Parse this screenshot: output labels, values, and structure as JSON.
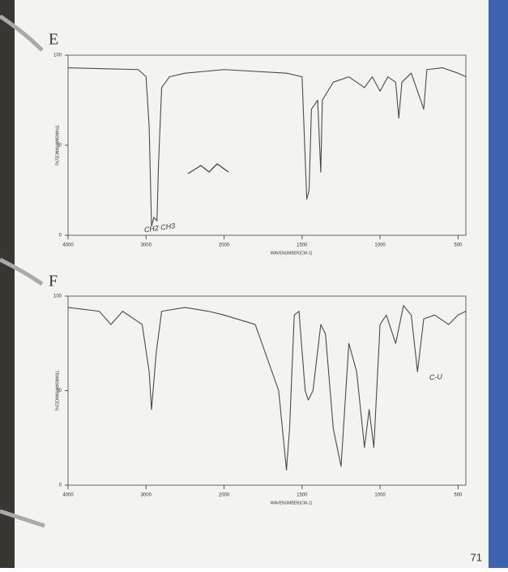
{
  "page_number": "71",
  "chart_data": [
    {
      "type": "line",
      "title": "E",
      "x_label": "WAVENUMBER(CM-1)",
      "y_label": "TRANSMITTANCE(%)",
      "annotations": [
        "CH2 CH3"
      ],
      "color": "#4a4a4a",
      "grid": false,
      "x_scale_break": 2000,
      "xlim": [
        4000,
        450
      ],
      "xticks": [
        4000,
        3000,
        2000,
        1500,
        1000,
        500
      ],
      "ylim": [
        0,
        100
      ],
      "yticks": [
        0,
        50,
        100
      ],
      "x": [
        4000,
        3100,
        3000,
        2960,
        2930,
        2900,
        2860,
        2840,
        2800,
        2700,
        2500,
        2000,
        1600,
        1500,
        1470,
        1455,
        1440,
        1400,
        1380,
        1370,
        1300,
        1200,
        1100,
        1050,
        1000,
        950,
        900,
        880,
        860,
        800,
        720,
        700,
        600,
        500,
        450
      ],
      "values": [
        93,
        92,
        88,
        60,
        5,
        10,
        8,
        40,
        82,
        88,
        90,
        92,
        90,
        88,
        20,
        25,
        70,
        75,
        35,
        75,
        85,
        88,
        82,
        88,
        80,
        88,
        85,
        65,
        85,
        90,
        70,
        92,
        93,
        90,
        88
      ]
    },
    {
      "type": "line",
      "title": "F",
      "x_label": "WAVENUMBER(CM-1)",
      "y_label": "TRANSMITTANCE(%)",
      "annotations": [
        "C-U"
      ],
      "color": "#4a4a4a",
      "grid": false,
      "x_scale_break": 2000,
      "xlim": [
        4000,
        450
      ],
      "xticks": [
        4000,
        3000,
        2000,
        1500,
        1000,
        500
      ],
      "ylim": [
        0,
        100
      ],
      "yticks": [
        0,
        50,
        100
      ],
      "x": [
        4000,
        3600,
        3450,
        3300,
        3050,
        2960,
        2930,
        2870,
        2800,
        2500,
        2200,
        2000,
        1800,
        1650,
        1600,
        1580,
        1550,
        1520,
        1480,
        1460,
        1430,
        1380,
        1350,
        1300,
        1250,
        1200,
        1150,
        1100,
        1070,
        1040,
        1000,
        960,
        900,
        850,
        800,
        760,
        720,
        650,
        560,
        500,
        450
      ],
      "values": [
        94,
        92,
        85,
        92,
        85,
        60,
        40,
        70,
        92,
        94,
        92,
        90,
        85,
        50,
        8,
        30,
        90,
        92,
        50,
        45,
        50,
        85,
        80,
        30,
        10,
        75,
        60,
        20,
        40,
        20,
        85,
        90,
        75,
        95,
        90,
        60,
        88,
        90,
        85,
        90,
        92
      ]
    }
  ]
}
